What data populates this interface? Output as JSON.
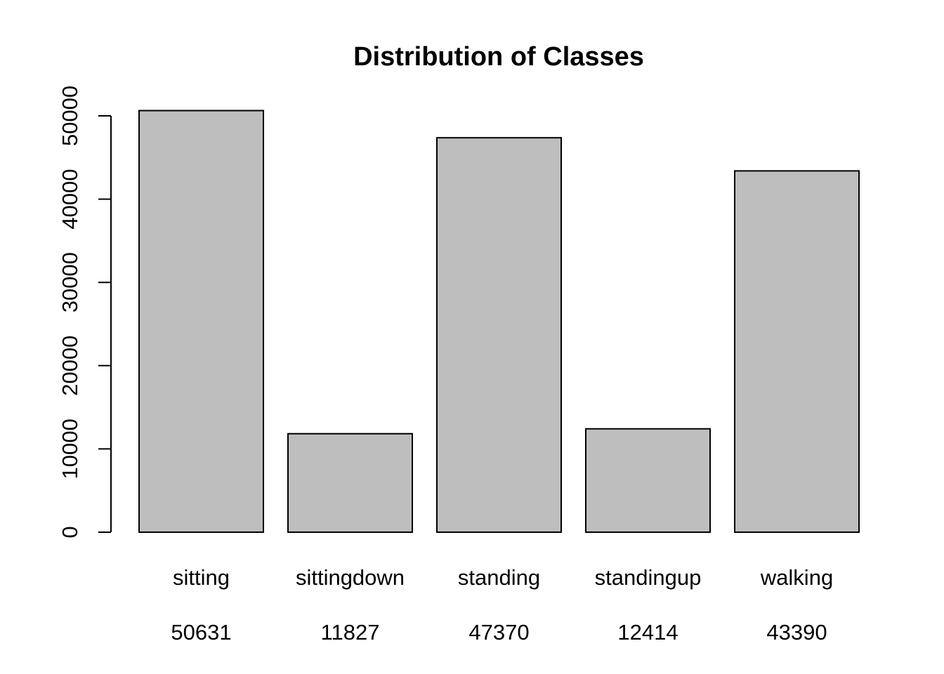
{
  "chart_data": {
    "type": "bar",
    "title": "Distribution of Classes",
    "xlabel": "",
    "ylabel": "",
    "categories": [
      "sitting",
      "sittingdown",
      "standing",
      "standingup",
      "walking"
    ],
    "values": [
      50631,
      11827,
      47370,
      12414,
      43390
    ],
    "value_labels": [
      "50631",
      "11827",
      "47370",
      "12414",
      "43390"
    ],
    "yticks": [
      0,
      10000,
      20000,
      30000,
      40000,
      50000
    ],
    "ylim": [
      0,
      50631
    ],
    "grid": false,
    "legend": "none",
    "bar_color": "#bebebe",
    "edge_color": "#000000"
  }
}
